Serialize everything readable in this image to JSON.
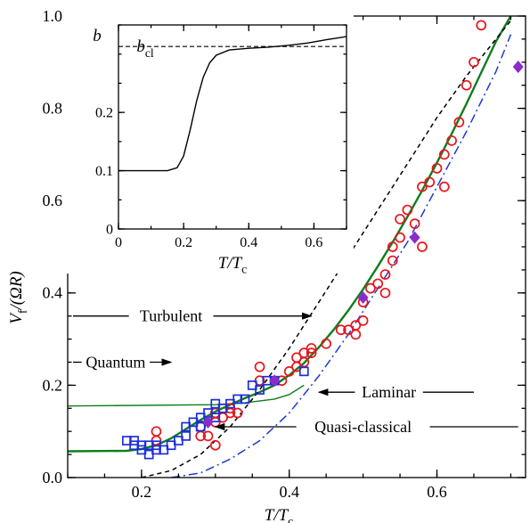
{
  "chart_data": [
    {
      "type": "scatter",
      "title": "",
      "xlabel": "T/T_c",
      "ylabel": "V_f/(ΩR)",
      "xlim": [
        0.1,
        0.72
      ],
      "ylim": [
        0,
        1.0
      ],
      "x_ticks": [
        0.2,
        0.4,
        0.6
      ],
      "y_ticks": [
        0.0,
        0.2,
        0.4,
        0.6,
        0.8,
        1.0
      ],
      "x_tick_labels": [
        "0.2",
        "0.4",
        "0.6"
      ],
      "y_tick_labels": [
        "0.0",
        "0.2",
        "0.4",
        "0.6",
        "0.8",
        "1.0"
      ],
      "grid": false,
      "legend": "none",
      "annotations": [
        {
          "text": "Turbulent",
          "arrow": "right",
          "points_to": [
            0.43,
            0.35
          ]
        },
        {
          "text": "Quantum",
          "arrow": "right",
          "points_to": [
            0.24,
            0.25
          ]
        },
        {
          "text": "Laminar",
          "arrow": "left",
          "points_to": [
            0.44,
            0.185
          ]
        },
        {
          "text": "Quasi-classical",
          "arrow": "left",
          "points_to": [
            0.3,
            0.11
          ]
        }
      ],
      "series": [
        {
          "kind": "markers",
          "marker": "circle-open",
          "color": "#e8141c",
          "points": [
            [
              0.22,
              0.08
            ],
            [
              0.22,
              0.1
            ],
            [
              0.28,
              0.09
            ],
            [
              0.28,
              0.11
            ],
            [
              0.29,
              0.09
            ],
            [
              0.3,
              0.07
            ],
            [
              0.3,
              0.12
            ],
            [
              0.3,
              0.14
            ],
            [
              0.31,
              0.13
            ],
            [
              0.32,
              0.14
            ],
            [
              0.32,
              0.15
            ],
            [
              0.33,
              0.14
            ],
            [
              0.36,
              0.21
            ],
            [
              0.36,
              0.24
            ],
            [
              0.39,
              0.21
            ],
            [
              0.4,
              0.23
            ],
            [
              0.41,
              0.24
            ],
            [
              0.41,
              0.26
            ],
            [
              0.42,
              0.25
            ],
            [
              0.42,
              0.27
            ],
            [
              0.43,
              0.27
            ],
            [
              0.43,
              0.28
            ],
            [
              0.45,
              0.29
            ],
            [
              0.47,
              0.32
            ],
            [
              0.48,
              0.32
            ],
            [
              0.49,
              0.31
            ],
            [
              0.49,
              0.33
            ],
            [
              0.5,
              0.34
            ],
            [
              0.5,
              0.38
            ],
            [
              0.51,
              0.41
            ],
            [
              0.52,
              0.42
            ],
            [
              0.53,
              0.4
            ],
            [
              0.53,
              0.44
            ],
            [
              0.54,
              0.47
            ],
            [
              0.54,
              0.5
            ],
            [
              0.55,
              0.52
            ],
            [
              0.55,
              0.56
            ],
            [
              0.56,
              0.58
            ],
            [
              0.57,
              0.55
            ],
            [
              0.58,
              0.5
            ],
            [
              0.58,
              0.63
            ],
            [
              0.59,
              0.64
            ],
            [
              0.6,
              0.67
            ],
            [
              0.61,
              0.63
            ],
            [
              0.61,
              0.7
            ],
            [
              0.62,
              0.73
            ],
            [
              0.63,
              0.77
            ],
            [
              0.64,
              0.85
            ],
            [
              0.65,
              0.9
            ],
            [
              0.66,
              0.98
            ]
          ]
        },
        {
          "kind": "markers",
          "marker": "square-open",
          "color": "#1c2fd6",
          "points": [
            [
              0.18,
              0.08
            ],
            [
              0.19,
              0.07
            ],
            [
              0.19,
              0.08
            ],
            [
              0.2,
              0.06
            ],
            [
              0.2,
              0.07
            ],
            [
              0.21,
              0.05
            ],
            [
              0.21,
              0.07
            ],
            [
              0.22,
              0.06
            ],
            [
              0.22,
              0.07
            ],
            [
              0.23,
              0.06
            ],
            [
              0.24,
              0.07
            ],
            [
              0.25,
              0.08
            ],
            [
              0.26,
              0.09
            ],
            [
              0.26,
              0.11
            ],
            [
              0.27,
              0.12
            ],
            [
              0.28,
              0.11
            ],
            [
              0.28,
              0.13
            ],
            [
              0.29,
              0.14
            ],
            [
              0.3,
              0.13
            ],
            [
              0.3,
              0.16
            ],
            [
              0.31,
              0.15
            ],
            [
              0.32,
              0.16
            ],
            [
              0.33,
              0.17
            ],
            [
              0.34,
              0.17
            ],
            [
              0.35,
              0.2
            ],
            [
              0.36,
              0.19
            ],
            [
              0.37,
              0.21
            ],
            [
              0.38,
              0.21
            ],
            [
              0.42,
              0.23
            ]
          ]
        },
        {
          "kind": "markers",
          "marker": "diamond-filled",
          "color": "#8c2cc8",
          "points": [
            [
              0.29,
              0.12
            ],
            [
              0.38,
              0.21
            ],
            [
              0.5,
              0.39
            ],
            [
              0.57,
              0.52
            ],
            [
              0.71,
              0.89
            ]
          ]
        },
        {
          "kind": "line",
          "style": "solid",
          "color": "#0f7d1e",
          "points": [
            [
              0.1,
              0.057
            ],
            [
              0.18,
              0.058
            ],
            [
              0.2,
              0.062
            ],
            [
              0.22,
              0.07
            ],
            [
              0.24,
              0.085
            ],
            [
              0.26,
              0.105
            ],
            [
              0.28,
              0.125
            ],
            [
              0.3,
              0.143
            ],
            [
              0.32,
              0.158
            ],
            [
              0.34,
              0.172
            ],
            [
              0.36,
              0.185
            ],
            [
              0.38,
              0.2
            ],
            [
              0.4,
              0.222
            ],
            [
              0.42,
              0.248
            ],
            [
              0.44,
              0.282
            ],
            [
              0.46,
              0.32
            ],
            [
              0.48,
              0.362
            ],
            [
              0.5,
              0.408
            ],
            [
              0.52,
              0.458
            ],
            [
              0.54,
              0.51
            ],
            [
              0.56,
              0.565
            ],
            [
              0.58,
              0.622
            ],
            [
              0.6,
              0.682
            ],
            [
              0.62,
              0.745
            ],
            [
              0.64,
              0.81
            ],
            [
              0.66,
              0.878
            ],
            [
              0.68,
              0.945
            ],
            [
              0.7,
              1.0
            ]
          ]
        },
        {
          "kind": "line",
          "style": "solid-thin",
          "color": "#0f7d1e",
          "points": [
            [
              0.1,
              0.155
            ],
            [
              0.3,
              0.158
            ],
            [
              0.34,
              0.162
            ],
            [
              0.38,
              0.17
            ],
            [
              0.4,
              0.18
            ],
            [
              0.42,
              0.2
            ]
          ]
        },
        {
          "kind": "line",
          "style": "dashed",
          "color": "#000000",
          "points": [
            [
              0.2,
              0.0
            ],
            [
              0.24,
              0.015
            ],
            [
              0.28,
              0.05
            ],
            [
              0.32,
              0.11
            ],
            [
              0.36,
              0.19
            ],
            [
              0.4,
              0.28
            ],
            [
              0.44,
              0.38
            ],
            [
              0.48,
              0.48
            ],
            [
              0.52,
              0.58
            ],
            [
              0.56,
              0.68
            ],
            [
              0.6,
              0.78
            ],
            [
              0.64,
              0.87
            ],
            [
              0.68,
              0.95
            ],
            [
              0.7,
              0.99
            ]
          ]
        },
        {
          "kind": "line",
          "style": "dash-dot",
          "color": "#1c3ad6",
          "points": [
            [
              0.24,
              0.0
            ],
            [
              0.28,
              0.01
            ],
            [
              0.32,
              0.04
            ],
            [
              0.36,
              0.08
            ],
            [
              0.4,
              0.14
            ],
            [
              0.44,
              0.22
            ],
            [
              0.48,
              0.31
            ],
            [
              0.52,
              0.41
            ],
            [
              0.56,
              0.51
            ],
            [
              0.6,
              0.63
            ],
            [
              0.64,
              0.75
            ],
            [
              0.68,
              0.88
            ],
            [
              0.7,
              0.96
            ]
          ]
        }
      ]
    },
    {
      "type": "line",
      "title": "",
      "xlabel": "T/T_c",
      "ylabel": "b",
      "xlim": [
        0,
        0.7
      ],
      "ylim": [
        0,
        0.35
      ],
      "x_ticks": [
        0,
        0.2,
        0.4,
        0.6
      ],
      "y_ticks": [
        0,
        0.1,
        0.2
      ],
      "x_tick_labels": [
        "0",
        "0.2",
        "0.4",
        "0.6"
      ],
      "y_tick_labels": [
        "0",
        "0.1",
        "0.2"
      ],
      "reference_line": {
        "label": "b_cl",
        "y": 0.313,
        "style": "dashed"
      },
      "series": [
        {
          "kind": "line",
          "style": "solid",
          "color": "#000000",
          "points": [
            [
              0,
              0.1
            ],
            [
              0.15,
              0.1
            ],
            [
              0.18,
              0.105
            ],
            [
              0.2,
              0.125
            ],
            [
              0.22,
              0.17
            ],
            [
              0.24,
              0.22
            ],
            [
              0.26,
              0.26
            ],
            [
              0.28,
              0.285
            ],
            [
              0.3,
              0.298
            ],
            [
              0.34,
              0.307
            ],
            [
              0.4,
              0.31
            ],
            [
              0.46,
              0.312
            ],
            [
              0.52,
              0.315
            ],
            [
              0.58,
              0.319
            ],
            [
              0.64,
              0.325
            ],
            [
              0.7,
              0.33
            ]
          ]
        }
      ]
    }
  ]
}
